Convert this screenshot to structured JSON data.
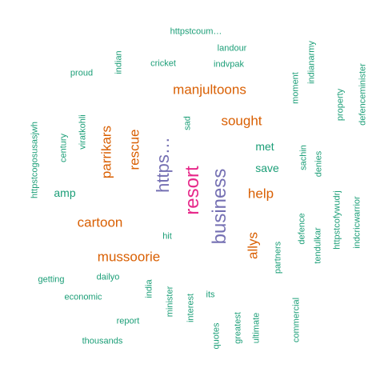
{
  "colors": {
    "green": "#1b9e77",
    "orange": "#d95f02",
    "purple": "#7570b3",
    "pink": "#e7298a"
  },
  "words": [
    {
      "text": "httpstcoum…",
      "color": "green"
    },
    {
      "text": "landour",
      "color": "green"
    },
    {
      "text": "indianarmy",
      "color": "green"
    },
    {
      "text": "proud",
      "color": "green"
    },
    {
      "text": "indian",
      "color": "green"
    },
    {
      "text": "cricket",
      "color": "green"
    },
    {
      "text": "indvpak",
      "color": "green"
    },
    {
      "text": "defenceminister",
      "color": "green"
    },
    {
      "text": "manjultoons",
      "color": "orange"
    },
    {
      "text": "moment",
      "color": "green"
    },
    {
      "text": "property",
      "color": "green"
    },
    {
      "text": "httpstcogosusasjwh",
      "color": "green"
    },
    {
      "text": "viratkohli",
      "color": "green"
    },
    {
      "text": "century",
      "color": "green"
    },
    {
      "text": "parrikars",
      "color": "orange"
    },
    {
      "text": "rescue",
      "color": "orange"
    },
    {
      "text": "https…",
      "color": "purple"
    },
    {
      "text": "sad",
      "color": "green"
    },
    {
      "text": "sought",
      "color": "orange"
    },
    {
      "text": "met",
      "color": "green"
    },
    {
      "text": "save",
      "color": "green"
    },
    {
      "text": "sachin",
      "color": "green"
    },
    {
      "text": "denies",
      "color": "green"
    },
    {
      "text": "resort",
      "color": "pink"
    },
    {
      "text": "business",
      "color": "purple"
    },
    {
      "text": "help",
      "color": "orange"
    },
    {
      "text": "amp",
      "color": "green"
    },
    {
      "text": "httpstcofywudrj",
      "color": "green"
    },
    {
      "text": "indcricwarrior",
      "color": "green"
    },
    {
      "text": "cartoon",
      "color": "orange"
    },
    {
      "text": "defence",
      "color": "green"
    },
    {
      "text": "tendulkar",
      "color": "green"
    },
    {
      "text": "hit",
      "color": "green"
    },
    {
      "text": "allys",
      "color": "orange"
    },
    {
      "text": "partners",
      "color": "green"
    },
    {
      "text": "mussoorie",
      "color": "orange"
    },
    {
      "text": "getting",
      "color": "green"
    },
    {
      "text": "dailyo",
      "color": "green"
    },
    {
      "text": "india",
      "color": "green"
    },
    {
      "text": "minister",
      "color": "green"
    },
    {
      "text": "its",
      "color": "green"
    },
    {
      "text": "economic",
      "color": "green"
    },
    {
      "text": "interest",
      "color": "green"
    },
    {
      "text": "commercial",
      "color": "green"
    },
    {
      "text": "report",
      "color": "green"
    },
    {
      "text": "greatest",
      "color": "green"
    },
    {
      "text": "ultimate",
      "color": "green"
    },
    {
      "text": "quotes",
      "color": "green"
    },
    {
      "text": "thousands",
      "color": "green"
    }
  ]
}
